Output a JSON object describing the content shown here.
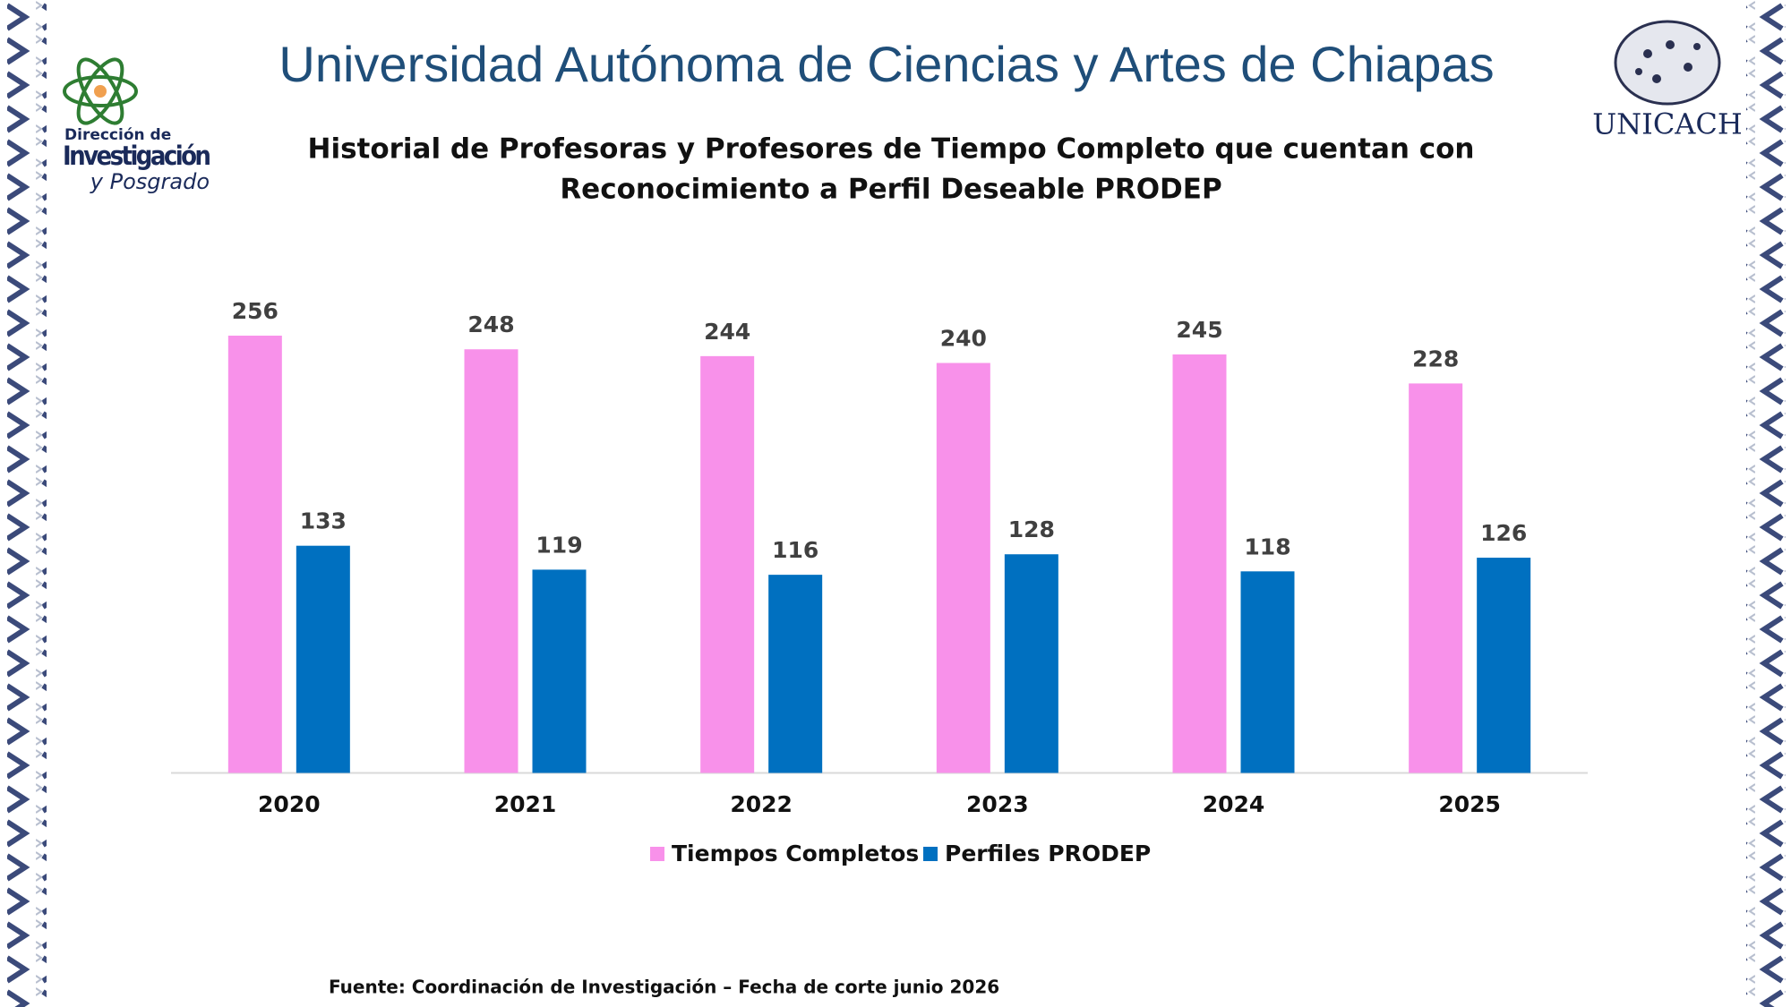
{
  "header": {
    "title": "Universidad Autónoma de Ciencias y Artes de Chiapas",
    "left_logo": [
      "Dirección de",
      "Investigación",
      "y Posgrado"
    ],
    "right_logo": "UNICACH"
  },
  "chart_data": {
    "type": "bar",
    "title": [
      "Historial de Profesoras y Profesores de Tiempo Completo que cuentan con",
      "Reconocimiento a Perfil Deseable PRODEP"
    ],
    "categories": [
      "2020",
      "2021",
      "2022",
      "2023",
      "2024",
      "2025"
    ],
    "series": [
      {
        "name": "Tiempos Completos",
        "color": "#f891ea",
        "values": [
          256,
          248,
          244,
          240,
          245,
          228
        ]
      },
      {
        "name": "Perfiles PRODEP",
        "color": "#0070c0",
        "values": [
          133,
          119,
          116,
          128,
          118,
          126
        ]
      }
    ],
    "ylim": [
      0,
      300
    ],
    "legend": "bottom"
  },
  "footer": {
    "source": "Fuente: Coordinación de Investigación – Fecha de corte junio 2026"
  }
}
